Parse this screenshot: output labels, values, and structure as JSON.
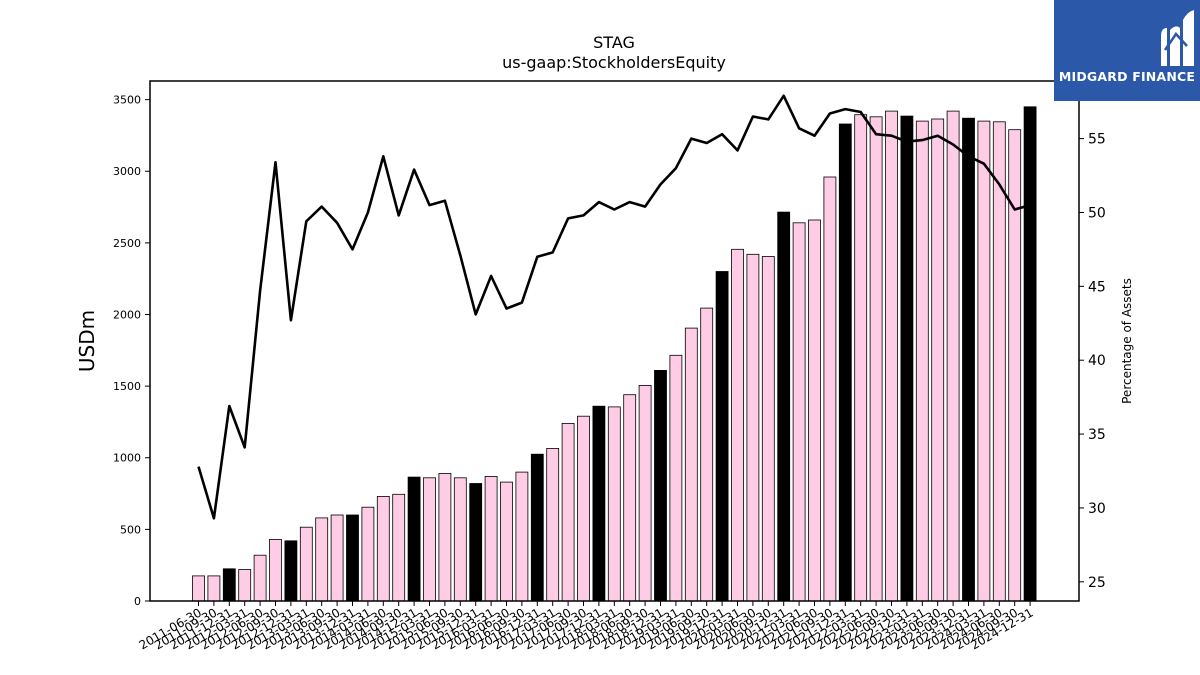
{
  "brand": {
    "name": "MIDGARD FINANCE",
    "logo_icon": "midgard-m-logo-icon",
    "background": "#2b58a8"
  },
  "chart_data": {
    "type": "bar",
    "title": "STAG",
    "subtitle": "us-gaap:StockholdersEquity",
    "ylabel": "USDm",
    "ylabel_right": "Percentage of Assets",
    "ylim": [
      0,
      3630
    ],
    "ylim_right": [
      23.7,
      58.9
    ],
    "yticks": [
      0,
      500,
      1000,
      1500,
      2000,
      2500,
      3000,
      3500
    ],
    "yticks_right": [
      25,
      30,
      35,
      40,
      45,
      50,
      55
    ],
    "grid": false,
    "colors": {
      "bar": "#ffcce6",
      "bar_highlight": "#000000",
      "bar_edge": "#000000",
      "line": "#000000"
    },
    "categories": [
      "2011-06-30",
      "2011-09-30",
      "2011-12-31",
      "2012-03-31",
      "2012-06-30",
      "2012-09-30",
      "2012-12-31",
      "2013-03-31",
      "2013-06-30",
      "2013-09-30",
      "2013-12-31",
      "2014-03-31",
      "2014-06-30",
      "2014-09-30",
      "2014-12-31",
      "2015-03-31",
      "2015-06-30",
      "2015-09-30",
      "2015-12-31",
      "2016-03-31",
      "2016-06-30",
      "2016-09-30",
      "2016-12-31",
      "2017-03-31",
      "2017-06-30",
      "2017-09-30",
      "2017-12-31",
      "2018-03-31",
      "2018-06-30",
      "2018-09-30",
      "2018-12-31",
      "2019-03-31",
      "2019-06-30",
      "2019-09-30",
      "2019-12-31",
      "2020-03-31",
      "2020-06-30",
      "2020-09-30",
      "2020-12-31",
      "2021-03-31",
      "2021-06-30",
      "2021-09-30",
      "2021-12-31",
      "2022-03-31",
      "2022-06-30",
      "2022-09-30",
      "2022-12-31",
      "2023-03-31",
      "2023-06-30",
      "2023-09-30",
      "2023-12-31",
      "2024-03-31",
      "2024-06-30",
      "2024-09-30",
      "2024-12-31"
    ],
    "series": [
      {
        "type": "bar",
        "axis": "left",
        "values": [
          175,
          175,
          225,
          220,
          320,
          430,
          420,
          515,
          580,
          600,
          600,
          655,
          730,
          745,
          865,
          860,
          890,
          860,
          820,
          870,
          830,
          900,
          1025,
          1065,
          1240,
          1290,
          1360,
          1355,
          1440,
          1505,
          1610,
          1715,
          1905,
          2045,
          2300,
          2455,
          2420,
          2405,
          2715,
          2640,
          2660,
          2960,
          3330,
          3395,
          3380,
          3420,
          3385,
          3350,
          3365,
          3420,
          3370,
          3350,
          3345,
          3290,
          3450
        ],
        "highlight": [
          false,
          false,
          true,
          false,
          false,
          false,
          true,
          false,
          false,
          false,
          true,
          false,
          false,
          false,
          true,
          false,
          false,
          false,
          true,
          false,
          false,
          false,
          true,
          false,
          false,
          false,
          true,
          false,
          false,
          false,
          true,
          false,
          false,
          false,
          true,
          false,
          false,
          false,
          true,
          false,
          false,
          false,
          true,
          false,
          false,
          false,
          true,
          false,
          false,
          false,
          true,
          false,
          false,
          false,
          true
        ]
      },
      {
        "type": "line",
        "axis": "right",
        "values": [
          32.8,
          29.3,
          36.9,
          34.1,
          44.7,
          53.4,
          42.7,
          49.4,
          50.4,
          49.3,
          47.5,
          50.0,
          53.8,
          49.8,
          52.9,
          50.5,
          50.8,
          47.1,
          43.1,
          45.7,
          43.5,
          43.9,
          47.0,
          47.3,
          49.6,
          49.8,
          50.7,
          50.2,
          50.7,
          50.4,
          51.9,
          53.0,
          55.0,
          54.7,
          55.3,
          54.2,
          56.5,
          56.3,
          57.9,
          55.7,
          55.2,
          56.7,
          57.0,
          56.8,
          55.3,
          55.2,
          54.8,
          54.9,
          55.2,
          54.6,
          53.8,
          53.3,
          51.9,
          50.2,
          50.5
        ]
      }
    ]
  }
}
